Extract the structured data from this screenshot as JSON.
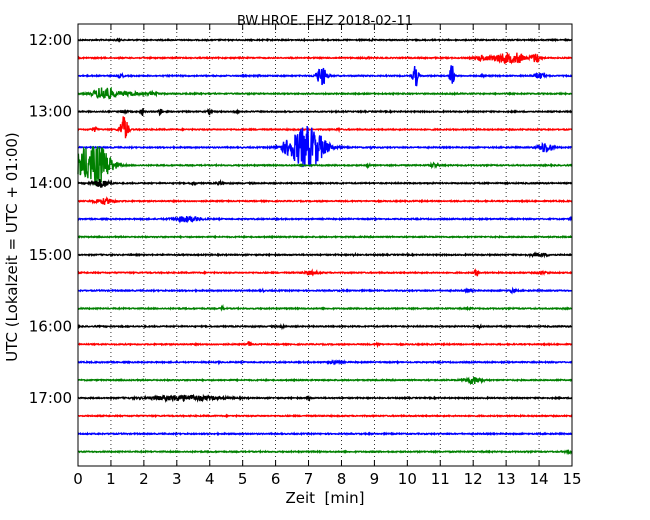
{
  "chart_data": {
    "type": "line",
    "title": "BW.HROE..EHZ 2018-02-11",
    "xlabel": "Zeit  [min]",
    "ylabel": "UTC (Lokalzeit = UTC + 01:00)",
    "xlim": [
      0,
      15
    ],
    "x_ticks": [
      "0",
      "1",
      "2",
      "3",
      "4",
      "5",
      "6",
      "7",
      "8",
      "9",
      "10",
      "11",
      "12",
      "13",
      "14",
      "15"
    ],
    "y_ticks": [
      "12:00",
      "13:00",
      "14:00",
      "15:00",
      "16:00",
      "17:00"
    ],
    "grid": "vertical dotted",
    "trace_interval_min": 15,
    "colors": [
      "#000000",
      "#ff0000",
      "#0000ff",
      "#008000"
    ],
    "traces": [
      {
        "start": "12:00",
        "color": "#000000",
        "events": [
          [
            1.2,
            0.08,
            0.08
          ],
          [
            8.9,
            0.05,
            0.08
          ]
        ]
      },
      {
        "start": "12:15",
        "color": "#ff0000",
        "events": [
          [
            12.3,
            0.2,
            0.25
          ],
          [
            13.0,
            0.4,
            0.55
          ],
          [
            13.4,
            0.15,
            0.35
          ],
          [
            13.9,
            0.15,
            0.5
          ],
          [
            8.8,
            0.05,
            0.12
          ]
        ]
      },
      {
        "start": "12:30",
        "color": "#0000ff",
        "events": [
          [
            7.4,
            0.15,
            1.1
          ],
          [
            10.25,
            0.08,
            1.3
          ],
          [
            11.35,
            0.06,
            1.5
          ],
          [
            14.0,
            0.15,
            0.35
          ],
          [
            1.3,
            0.08,
            0.2
          ],
          [
            5.5,
            0.05,
            0.12
          ],
          [
            12.3,
            0.06,
            0.12
          ]
        ]
      },
      {
        "start": "12:45",
        "color": "#008000",
        "events": [
          [
            0.8,
            0.3,
            0.8
          ],
          [
            1.5,
            0.4,
            0.2
          ],
          [
            2.3,
            0.2,
            0.12
          ]
        ]
      },
      {
        "start": "13:00",
        "color": "#000000",
        "events": [
          [
            1.95,
            0.05,
            0.45
          ],
          [
            2.5,
            0.05,
            0.45
          ],
          [
            4.0,
            0.05,
            0.35
          ],
          [
            4.8,
            0.05,
            0.35
          ],
          [
            1.4,
            0.1,
            0.2
          ]
        ]
      },
      {
        "start": "13:15",
        "color": "#ff0000",
        "events": [
          [
            1.4,
            0.12,
            1.5
          ],
          [
            0.5,
            0.08,
            0.25
          ],
          [
            7.9,
            0.04,
            0.12
          ]
        ]
      },
      {
        "start": "13:30",
        "color": "#0000ff",
        "events": [
          [
            6.98,
            0.5,
            2.4
          ],
          [
            6.4,
            0.3,
            0.4
          ],
          [
            14.2,
            0.2,
            0.6
          ],
          [
            8.9,
            0.05,
            0.12
          ]
        ]
      },
      {
        "start": "13:45",
        "color": "#008000",
        "events": [
          [
            0.1,
            0.25,
            1.2
          ],
          [
            0.6,
            0.4,
            2.2
          ],
          [
            8.8,
            0.05,
            0.3
          ],
          [
            10.8,
            0.1,
            0.25
          ]
        ]
      },
      {
        "start": "14:00",
        "color": "#000000",
        "events": [
          [
            0.7,
            0.25,
            0.45
          ],
          [
            3.5,
            0.06,
            0.25
          ],
          [
            4.3,
            0.1,
            0.15
          ]
        ]
      },
      {
        "start": "14:15",
        "color": "#ff0000",
        "events": [
          [
            0.8,
            0.3,
            0.3
          ]
        ]
      },
      {
        "start": "14:30",
        "color": "#0000ff",
        "events": [
          [
            3.3,
            0.4,
            0.3
          ],
          [
            15.0,
            0.05,
            0.25
          ]
        ]
      },
      {
        "start": "14:45",
        "color": "#008000",
        "events": []
      },
      {
        "start": "15:00",
        "color": "#000000",
        "events": [
          [
            14.0,
            0.3,
            0.15
          ],
          [
            8.4,
            0.05,
            0.1
          ]
        ]
      },
      {
        "start": "15:15",
        "color": "#ff0000",
        "events": [
          [
            12.1,
            0.06,
            0.45
          ],
          [
            7.1,
            0.2,
            0.2
          ],
          [
            14.1,
            0.15,
            0.15
          ]
        ]
      },
      {
        "start": "15:30",
        "color": "#0000ff",
        "events": [
          [
            11.9,
            0.1,
            0.2
          ],
          [
            13.2,
            0.1,
            0.2
          ],
          [
            5.6,
            0.05,
            0.12
          ]
        ]
      },
      {
        "start": "15:45",
        "color": "#008000",
        "events": [
          [
            4.4,
            0.06,
            0.2
          ],
          [
            11.9,
            0.06,
            0.1
          ]
        ]
      },
      {
        "start": "16:00",
        "color": "#000000",
        "events": [
          [
            6.2,
            0.06,
            0.15
          ],
          [
            12.2,
            0.06,
            0.15
          ]
        ]
      },
      {
        "start": "16:15",
        "color": "#ff0000",
        "events": [
          [
            5.2,
            0.05,
            0.35
          ],
          [
            9.1,
            0.06,
            0.12
          ]
        ]
      },
      {
        "start": "16:30",
        "color": "#0000ff",
        "events": [
          [
            7.8,
            0.2,
            0.15
          ],
          [
            4.3,
            0.05,
            0.1
          ]
        ]
      },
      {
        "start": "16:45",
        "color": "#008000",
        "events": [
          [
            12.0,
            0.25,
            0.4
          ]
        ]
      },
      {
        "start": "17:00",
        "color": "#000000",
        "events": [
          [
            3.2,
            1.0,
            0.3
          ],
          [
            7.0,
            0.05,
            0.25
          ]
        ]
      },
      {
        "start": "17:15",
        "color": "#ff0000",
        "events": []
      },
      {
        "start": "17:30",
        "color": "#0000ff",
        "events": []
      },
      {
        "start": "17:45",
        "color": "#008000",
        "events": [
          [
            14.9,
            0.1,
            0.15
          ]
        ]
      }
    ]
  }
}
